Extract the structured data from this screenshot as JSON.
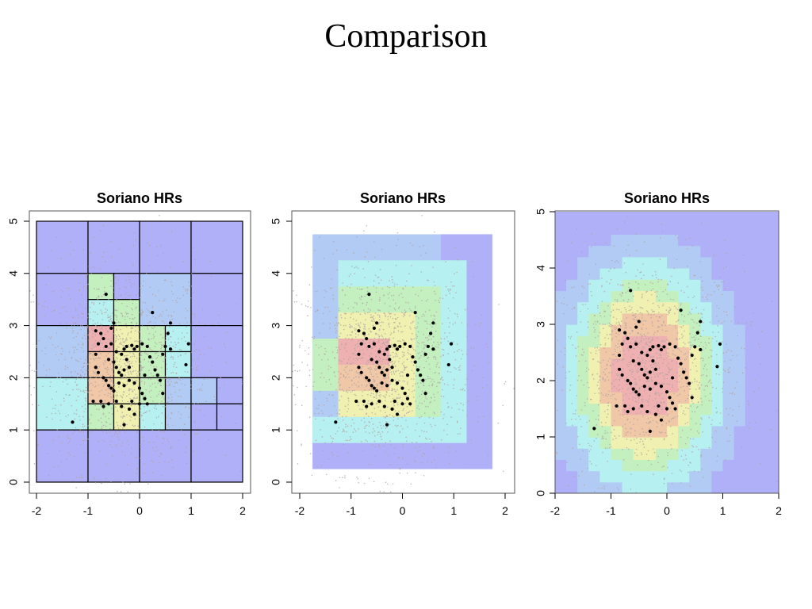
{
  "slide": {
    "title": "Comparison"
  },
  "colors": {
    "low": "#b0b0f8",
    "low2": "#b2cbf5",
    "mid": "#b6f0f0",
    "midhigh": "#c4f0c0",
    "high": "#f0f0b0",
    "peak": "#f0c8a8",
    "max": "#eeb0b0",
    "hit": "#000000",
    "background_points": "#b0a0a0"
  },
  "chart_data": [
    {
      "type": "heatmap",
      "method": "quadtree",
      "title": "Soriano HRs",
      "xlim": [
        -2,
        2
      ],
      "ylim": [
        0,
        5
      ],
      "xticks": [
        "-2",
        "-1",
        "0",
        "1",
        "2"
      ],
      "yticks": [
        "0",
        "1",
        "2",
        "3",
        "4",
        "5"
      ],
      "cells": [
        {
          "x0": -2,
          "x1": -1,
          "y0": 4,
          "y1": 5,
          "level": "low"
        },
        {
          "x0": -1,
          "x1": 0,
          "y0": 4,
          "y1": 5,
          "level": "low"
        },
        {
          "x0": 0,
          "x1": 1,
          "y0": 4,
          "y1": 5,
          "level": "low"
        },
        {
          "x0": 1,
          "x1": 2,
          "y0": 4,
          "y1": 5,
          "level": "low"
        },
        {
          "x0": -2,
          "x1": -1,
          "y0": 3,
          "y1": 4,
          "level": "low"
        },
        {
          "x0": -1,
          "x1": -0.5,
          "y0": 3.5,
          "y1": 4,
          "level": "midhigh"
        },
        {
          "x0": -0.5,
          "x1": 0,
          "y0": 3.5,
          "y1": 4,
          "level": "low"
        },
        {
          "x0": -1,
          "x1": -0.5,
          "y0": 3,
          "y1": 3.5,
          "level": "mid"
        },
        {
          "x0": -0.5,
          "x1": 0,
          "y0": 3,
          "y1": 3.5,
          "level": "midhigh"
        },
        {
          "x0": 0,
          "x1": 1,
          "y0": 3,
          "y1": 4,
          "level": "low2"
        },
        {
          "x0": 1,
          "x1": 2,
          "y0": 3,
          "y1": 4,
          "level": "low"
        },
        {
          "x0": -2,
          "x1": -1,
          "y0": 2,
          "y1": 3,
          "level": "low2"
        },
        {
          "x0": -1,
          "x1": -0.5,
          "y0": 2.5,
          "y1": 3,
          "level": "max"
        },
        {
          "x0": -0.5,
          "x1": 0,
          "y0": 2.5,
          "y1": 3,
          "level": "high"
        },
        {
          "x0": -1,
          "x1": -0.5,
          "y0": 2,
          "y1": 2.5,
          "level": "peak"
        },
        {
          "x0": -0.5,
          "x1": 0,
          "y0": 2,
          "y1": 2.5,
          "level": "high"
        },
        {
          "x0": 0,
          "x1": 0.5,
          "y0": 2.5,
          "y1": 3,
          "level": "midhigh"
        },
        {
          "x0": 0.5,
          "x1": 1,
          "y0": 2.5,
          "y1": 3,
          "level": "mid"
        },
        {
          "x0": 0,
          "x1": 0.5,
          "y0": 2,
          "y1": 2.5,
          "level": "midhigh"
        },
        {
          "x0": 0.5,
          "x1": 1,
          "y0": 2,
          "y1": 2.5,
          "level": "mid"
        },
        {
          "x0": 1,
          "x1": 2,
          "y0": 2,
          "y1": 3,
          "level": "low"
        },
        {
          "x0": -2,
          "x1": -1,
          "y0": 1,
          "y1": 2,
          "level": "mid"
        },
        {
          "x0": -1,
          "x1": -0.5,
          "y0": 1.5,
          "y1": 2,
          "level": "peak"
        },
        {
          "x0": -0.5,
          "x1": 0,
          "y0": 1.5,
          "y1": 2,
          "level": "high"
        },
        {
          "x0": -1,
          "x1": -0.5,
          "y0": 1,
          "y1": 1.5,
          "level": "midhigh"
        },
        {
          "x0": -0.5,
          "x1": 0,
          "y0": 1,
          "y1": 1.5,
          "level": "high"
        },
        {
          "x0": 0,
          "x1": 0.5,
          "y0": 1.5,
          "y1": 2,
          "level": "midhigh"
        },
        {
          "x0": 0.5,
          "x1": 1,
          "y0": 1.5,
          "y1": 2,
          "level": "low2"
        },
        {
          "x0": 0,
          "x1": 0.5,
          "y0": 1,
          "y1": 1.5,
          "level": "mid"
        },
        {
          "x0": 0.5,
          "x1": 1,
          "y0": 1,
          "y1": 1.5,
          "level": "low2"
        },
        {
          "x0": 1,
          "x1": 1.5,
          "y0": 1.5,
          "y1": 2,
          "level": "low2"
        },
        {
          "x0": 1.5,
          "x1": 2,
          "y0": 1.5,
          "y1": 2,
          "level": "low"
        },
        {
          "x0": 1,
          "x1": 1.5,
          "y0": 1,
          "y1": 1.5,
          "level": "low"
        },
        {
          "x0": 1.5,
          "x1": 2,
          "y0": 1,
          "y1": 1.5,
          "level": "low"
        },
        {
          "x0": -2,
          "x1": -1,
          "y0": 0,
          "y1": 1,
          "level": "low"
        },
        {
          "x0": -1,
          "x1": 0,
          "y0": 0,
          "y1": 1,
          "level": "low"
        },
        {
          "x0": 0,
          "x1": 1,
          "y0": 0,
          "y1": 1,
          "level": "low"
        },
        {
          "x0": 1,
          "x1": 2,
          "y0": 0,
          "y1": 1,
          "level": "low"
        }
      ]
    },
    {
      "type": "heatmap",
      "method": "nested-rectangles",
      "title": "Soriano HRs",
      "xlim": [
        -2,
        2
      ],
      "ylim": [
        0,
        5
      ],
      "xticks": [
        "-2",
        "-1",
        "0",
        "1",
        "2"
      ],
      "yticks": [
        "0",
        "1",
        "2",
        "3",
        "4",
        "5"
      ],
      "cells": [
        {
          "x0": -1.75,
          "x1": 1.75,
          "y0": 0.25,
          "y1": 4.75,
          "level": "low2"
        },
        {
          "x0": 0.75,
          "x1": 1.75,
          "y0": 4.25,
          "y1": 4.75,
          "level": "low"
        },
        {
          "x0": 1.25,
          "x1": 1.75,
          "y0": 0.25,
          "y1": 4.25,
          "level": "low"
        },
        {
          "x0": -1.75,
          "x1": 1.75,
          "y0": 0.25,
          "y1": 0.75,
          "level": "low"
        },
        {
          "x0": -1.75,
          "x1": 1.25,
          "y0": 0.75,
          "y1": 1.25,
          "level": "mid"
        },
        {
          "x0": -1.25,
          "x1": 1.25,
          "y0": 1.25,
          "y1": 4.25,
          "level": "mid"
        },
        {
          "x0": -1.25,
          "x1": 0.75,
          "y0": 1.25,
          "y1": 3.75,
          "level": "midhigh"
        },
        {
          "x0": -1.75,
          "x1": -1.25,
          "y0": 1.75,
          "y1": 2.75,
          "level": "midhigh"
        },
        {
          "x0": -1.25,
          "x1": 0.25,
          "y0": 1.25,
          "y1": 3.25,
          "level": "high"
        },
        {
          "x0": -1.25,
          "x1": -0.25,
          "y0": 1.75,
          "y1": 2.75,
          "level": "peak"
        },
        {
          "x0": -1.25,
          "x1": -0.25,
          "y0": 2.25,
          "y1": 2.75,
          "level": "max"
        }
      ]
    },
    {
      "type": "heatmap",
      "method": "kernel-density",
      "title": "Soriano HRs",
      "xlim": [
        -2,
        2
      ],
      "ylim": [
        0,
        5
      ],
      "xticks": [
        "-2",
        "-1",
        "0",
        "1",
        "2"
      ],
      "yticks": [
        "0",
        "1",
        "2",
        "3",
        "4",
        "5"
      ],
      "density_center": [
        -0.4,
        2.1
      ],
      "density_spread": [
        0.9,
        1.3
      ]
    }
  ],
  "hits": [
    [
      -0.85,
      2.9
    ],
    [
      -0.75,
      2.85
    ],
    [
      -0.7,
      2.75
    ],
    [
      -0.8,
      2.65
    ],
    [
      -0.65,
      2.6
    ],
    [
      -0.55,
      2.95
    ],
    [
      -0.5,
      3.05
    ],
    [
      -0.45,
      2.5
    ],
    [
      -0.35,
      2.45
    ],
    [
      -0.3,
      2.55
    ],
    [
      -0.25,
      2.6
    ],
    [
      -0.15,
      2.62
    ],
    [
      -0.1,
      2.55
    ],
    [
      -0.05,
      2.6
    ],
    [
      -0.6,
      2.35
    ],
    [
      -0.5,
      2.3
    ],
    [
      -0.45,
      2.2
    ],
    [
      -0.4,
      2.1
    ],
    [
      -0.35,
      2.05
    ],
    [
      -0.3,
      2.15
    ],
    [
      -0.2,
      2.2
    ],
    [
      -0.85,
      2.2
    ],
    [
      -0.8,
      2.1
    ],
    [
      -0.7,
      2.0
    ],
    [
      -0.65,
      1.95
    ],
    [
      -0.6,
      1.85
    ],
    [
      -0.55,
      1.8
    ],
    [
      -0.5,
      1.75
    ],
    [
      -0.4,
      1.9
    ],
    [
      -0.3,
      1.85
    ],
    [
      -0.2,
      1.95
    ],
    [
      -0.1,
      1.9
    ],
    [
      0.0,
      1.8
    ],
    [
      0.05,
      1.7
    ],
    [
      0.1,
      1.6
    ],
    [
      -0.75,
      1.55
    ],
    [
      -0.6,
      1.5
    ],
    [
      -0.45,
      1.55
    ],
    [
      -0.35,
      1.45
    ],
    [
      -0.2,
      1.4
    ],
    [
      -0.1,
      1.3
    ],
    [
      0.0,
      1.5
    ],
    [
      0.15,
      2.6
    ],
    [
      0.2,
      2.4
    ],
    [
      0.25,
      2.3
    ],
    [
      0.3,
      2.15
    ],
    [
      0.35,
      2.05
    ],
    [
      0.4,
      1.95
    ],
    [
      0.45,
      1.7
    ],
    [
      0.5,
      2.6
    ],
    [
      0.55,
      2.85
    ],
    [
      0.6,
      3.05
    ],
    [
      0.25,
      3.25
    ],
    [
      0.45,
      2.45
    ],
    [
      0.9,
      2.25
    ],
    [
      0.95,
      2.65
    ],
    [
      -0.65,
      3.6
    ],
    [
      -0.85,
      2.45
    ],
    [
      -0.9,
      1.55
    ],
    [
      -0.7,
      1.45
    ],
    [
      -0.3,
      1.1
    ],
    [
      -0.15,
      1.55
    ],
    [
      0.1,
      2.05
    ],
    [
      -1.3,
      1.15
    ],
    [
      0.05,
      2.65
    ],
    [
      -0.55,
      2.65
    ],
    [
      -0.25,
      2.35
    ],
    [
      0.6,
      2.55
    ],
    [
      0.15,
      1.5
    ]
  ]
}
